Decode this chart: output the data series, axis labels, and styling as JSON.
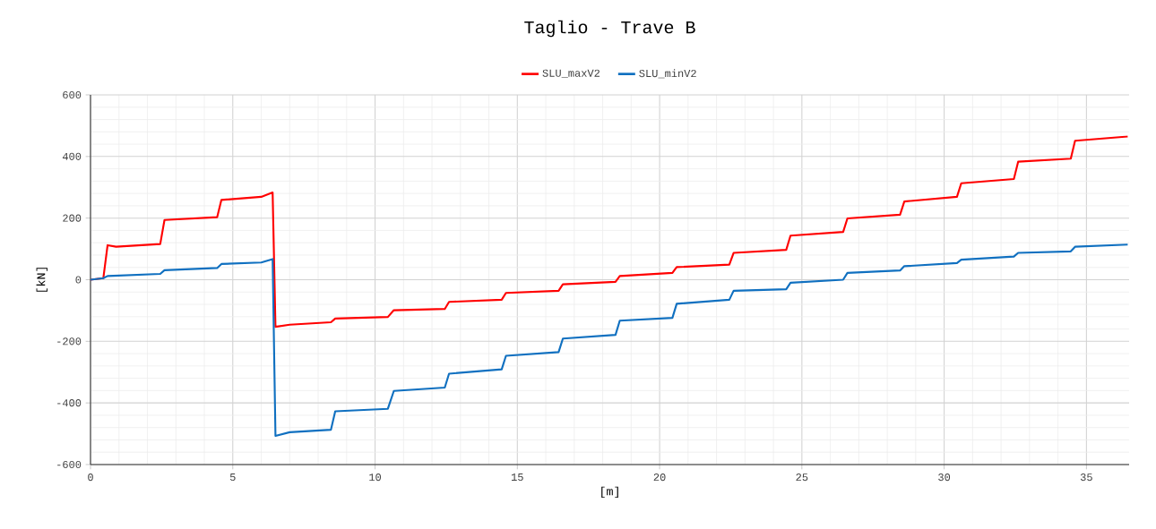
{
  "chart_data": {
    "type": "line",
    "title": "Taglio - Trave B",
    "xlabel": "[m]",
    "ylabel": "[kN]",
    "xlim": [
      0,
      36.5
    ],
    "ylim": [
      -600,
      600
    ],
    "xticks": [
      0,
      5,
      10,
      15,
      20,
      25,
      30,
      35
    ],
    "yticks": [
      -600,
      -400,
      -200,
      0,
      200,
      400,
      600
    ],
    "grid": true,
    "legend": "top",
    "marker": "none",
    "line_style": "solid",
    "series": [
      {
        "name": "SLU_maxV2",
        "color": "#ff0000",
        "x": [
          0,
          0.45,
          0.6,
          0.9,
          2.45,
          2.6,
          4.45,
          4.6,
          6,
          6.4,
          6.5,
          7,
          8.45,
          8.6,
          10.45,
          10.66,
          12.45,
          12.6,
          14.45,
          14.6,
          16.45,
          16.6,
          18.45,
          18.6,
          20.45,
          20.6,
          22.45,
          22.6,
          24.45,
          24.6,
          26.45,
          26.6,
          28.45,
          28.6,
          30.45,
          30.6,
          32.45,
          32.6,
          34.45,
          34.6,
          36.45
        ],
        "values": [
          0,
          5,
          112,
          107,
          116,
          194,
          203,
          259,
          269,
          283,
          -153,
          -146,
          -138,
          -126,
          -121,
          -99,
          -95,
          -72,
          -65,
          -43,
          -36,
          -15,
          -7,
          12,
          22,
          41,
          49,
          87,
          97,
          143,
          155,
          199,
          211,
          254,
          269,
          313,
          327,
          383,
          393,
          451,
          465
        ]
      },
      {
        "name": "SLU_minV2",
        "color": "#1070c0",
        "x": [
          0,
          0.45,
          0.6,
          2.45,
          2.6,
          4.45,
          4.6,
          6,
          6.4,
          6.5,
          7,
          8.45,
          8.6,
          10.45,
          10.66,
          12.45,
          12.6,
          14.45,
          14.6,
          16.45,
          16.6,
          18.45,
          18.6,
          20.45,
          20.6,
          22.45,
          22.6,
          24.45,
          24.6,
          26.45,
          26.6,
          28.45,
          28.6,
          30.45,
          30.6,
          32.45,
          32.6,
          34.45,
          34.6,
          36.45
        ],
        "values": [
          0,
          5,
          12,
          19,
          31,
          38,
          51,
          56,
          67,
          -507,
          -495,
          -487,
          -427,
          -419,
          -361,
          -350,
          -305,
          -291,
          -247,
          -235,
          -191,
          -179,
          -133,
          -124,
          -78,
          -65,
          -36,
          -31,
          -10,
          0,
          22,
          30,
          44,
          54,
          65,
          75,
          87,
          92,
          107,
          114
        ]
      }
    ]
  }
}
